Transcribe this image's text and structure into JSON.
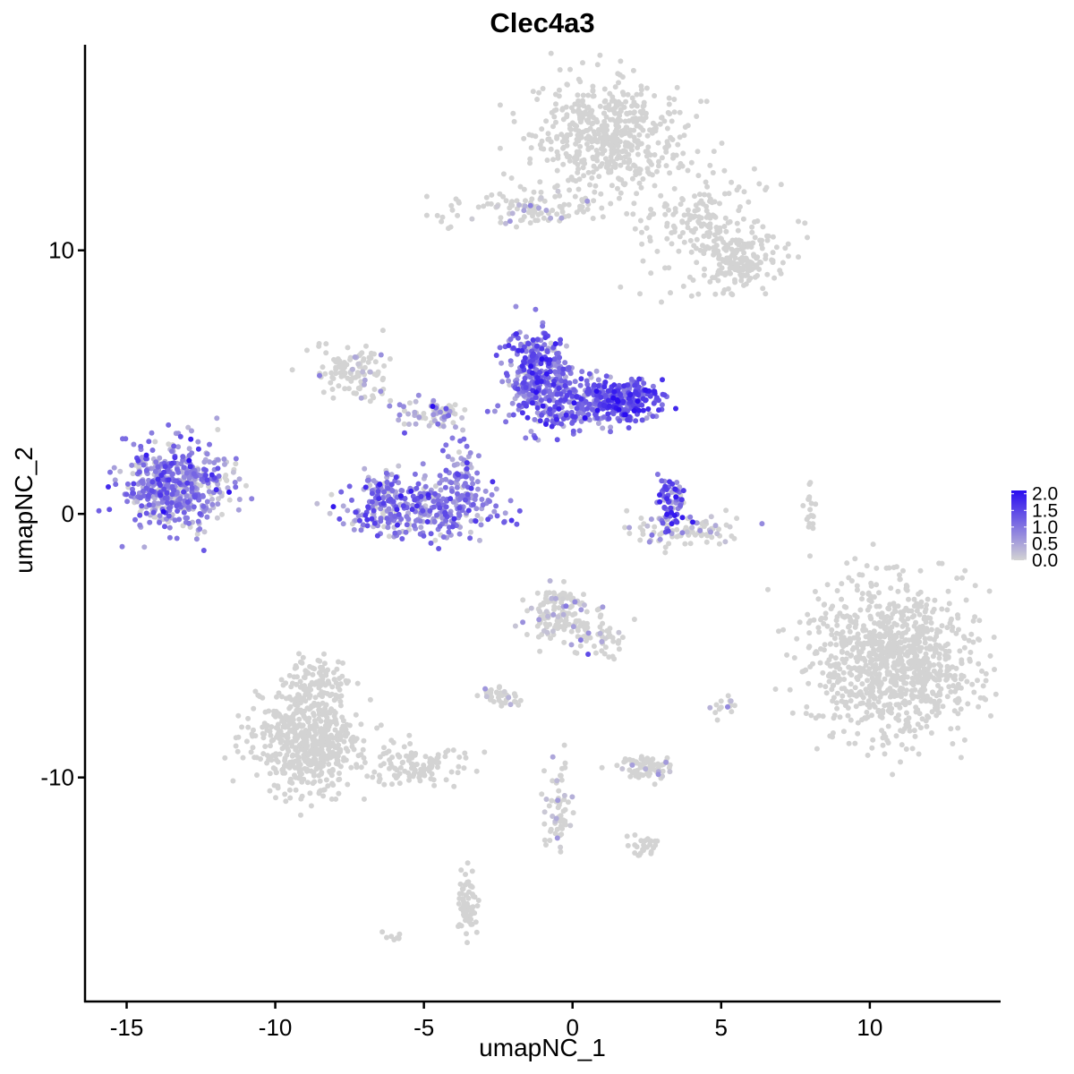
{
  "chart_data": {
    "type": "scatter",
    "title": "Clec4a3",
    "xlabel": "umapNC_1",
    "ylabel": "umapNC_2",
    "xlim": [
      -16.4,
      14.4
    ],
    "ylim": [
      -18.5,
      17.8
    ],
    "x_ticks": [
      -15,
      -10,
      -5,
      0,
      5,
      10
    ],
    "x_tick_labels": [
      "-15",
      "-10",
      "-5",
      "0",
      "5",
      "10"
    ],
    "y_ticks": [
      -10,
      0,
      10
    ],
    "y_tick_labels": [
      "-10",
      "0",
      "10"
    ],
    "grid": false,
    "legend": {
      "position": "right",
      "type": "colorbar",
      "range": [
        0,
        2.1
      ],
      "ticks": [
        0.0,
        0.5,
        1.0,
        1.5,
        2.0
      ],
      "tick_labels": [
        "0.0",
        "0.5",
        "1.0",
        "1.5",
        "2.0"
      ],
      "low_color": "#d3d3d3",
      "high_color": "#2a0df0"
    },
    "colors": {
      "low": "#d3d3d3",
      "high": "#2a0df0"
    },
    "clusters": [
      {
        "id": "top-right-block",
        "cx": 1.2,
        "cy": 14.3,
        "sx": 1.2,
        "sy": 1.0,
        "n": 520,
        "expr": 0.0
      },
      {
        "id": "top-right-arm",
        "cx": 4.6,
        "cy": 10.8,
        "sx": 1.3,
        "sy": 1.2,
        "n": 220,
        "expr": 0.0
      },
      {
        "id": "top-right-tail",
        "cx": 5.8,
        "cy": 9.6,
        "sx": 0.6,
        "sy": 0.5,
        "n": 120,
        "expr": 0.0
      },
      {
        "id": "top-streak",
        "cx": -1.6,
        "cy": 11.6,
        "sx": 1.3,
        "sy": 0.35,
        "n": 110,
        "expr": 0.03
      },
      {
        "id": "left-blob",
        "cx": -13.5,
        "cy": 1.1,
        "sx": 0.85,
        "sy": 0.75,
        "n": 460,
        "expr": 0.8
      },
      {
        "id": "left-blob-tail",
        "cx": -12.0,
        "cy": 1.3,
        "sx": 0.4,
        "sy": 0.9,
        "n": 50,
        "expr": 0.5
      },
      {
        "id": "crescent-bottom",
        "cx": -5.0,
        "cy": 0.2,
        "sx": 1.3,
        "sy": 0.55,
        "n": 340,
        "expr": 0.85
      },
      {
        "id": "crescent-left",
        "cx": -6.3,
        "cy": 0.9,
        "sx": 0.3,
        "sy": 0.5,
        "n": 60,
        "expr": 0.8
      },
      {
        "id": "crescent-right",
        "cx": -3.8,
        "cy": 1.2,
        "sx": 0.3,
        "sy": 0.7,
        "n": 70,
        "expr": 0.8
      },
      {
        "id": "mid-upper-left",
        "cx": -7.4,
        "cy": 5.4,
        "sx": 0.6,
        "sy": 0.5,
        "n": 110,
        "expr": 0.05
      },
      {
        "id": "mid-y-branch",
        "cx": -4.8,
        "cy": 3.8,
        "sx": 0.7,
        "sy": 0.3,
        "n": 70,
        "expr": 0.55
      },
      {
        "id": "mid-hub-left",
        "cx": -1.2,
        "cy": 5.4,
        "sx": 0.55,
        "sy": 0.8,
        "n": 300,
        "expr": 1.0
      },
      {
        "id": "mid-hub-center",
        "cx": 0.0,
        "cy": 4.2,
        "sx": 0.9,
        "sy": 0.55,
        "n": 240,
        "expr": 0.95
      },
      {
        "id": "mid-hub-right",
        "cx": 1.8,
        "cy": 4.3,
        "sx": 0.6,
        "sy": 0.4,
        "n": 220,
        "expr": 1.3
      },
      {
        "id": "small-right-vertical",
        "cx": 3.3,
        "cy": 0.5,
        "sx": 0.25,
        "sy": 0.6,
        "n": 70,
        "expr": 1.2
      },
      {
        "id": "small-right-base",
        "cx": 3.6,
        "cy": -0.6,
        "sx": 0.9,
        "sy": 0.35,
        "n": 100,
        "expr": 0.25
      },
      {
        "id": "right-large-blob",
        "cx": 10.8,
        "cy": -5.6,
        "sx": 1.45,
        "sy": 1.45,
        "n": 980,
        "expr": 0.0
      },
      {
        "id": "bottom-left-blob",
        "cx": -8.9,
        "cy": -8.6,
        "sx": 0.9,
        "sy": 1.0,
        "n": 560,
        "expr": 0.0
      },
      {
        "id": "bottom-left-top",
        "cx": -8.6,
        "cy": -6.3,
        "sx": 0.4,
        "sy": 0.6,
        "n": 90,
        "expr": 0.0
      },
      {
        "id": "bottom-left-tail",
        "cx": -5.2,
        "cy": -9.6,
        "sx": 0.9,
        "sy": 0.35,
        "n": 110,
        "expr": 0.0
      },
      {
        "id": "center-lower-blob",
        "cx": -0.5,
        "cy": -3.8,
        "sx": 0.55,
        "sy": 0.55,
        "n": 140,
        "expr": 0.08
      },
      {
        "id": "center-lower-tail",
        "cx": 0.9,
        "cy": -4.7,
        "sx": 0.5,
        "sy": 0.4,
        "n": 50,
        "expr": 0.02
      },
      {
        "id": "small-mid-cluster",
        "cx": -2.5,
        "cy": -6.9,
        "sx": 0.35,
        "sy": 0.2,
        "n": 40,
        "expr": 0.05
      },
      {
        "id": "small-dot-cluster",
        "cx": 5.1,
        "cy": -7.4,
        "sx": 0.2,
        "sy": 0.2,
        "n": 15,
        "expr": 0.05
      },
      {
        "id": "lower-center-oval",
        "cx": 2.5,
        "cy": -9.6,
        "sx": 0.5,
        "sy": 0.25,
        "n": 70,
        "expr": 0.08
      },
      {
        "id": "lower-streak",
        "cx": -0.5,
        "cy": -11.2,
        "sx": 0.2,
        "sy": 0.8,
        "n": 60,
        "expr": 0.02
      },
      {
        "id": "lower-right-small",
        "cx": 2.4,
        "cy": -12.6,
        "sx": 0.25,
        "sy": 0.2,
        "n": 25,
        "expr": 0.0
      },
      {
        "id": "bottom-vertical",
        "cx": -3.5,
        "cy": -14.8,
        "sx": 0.2,
        "sy": 0.6,
        "n": 60,
        "expr": 0.0
      },
      {
        "id": "right-thin-streak",
        "cx": 8.0,
        "cy": 0.3,
        "sx": 0.1,
        "sy": 0.5,
        "n": 18,
        "expr": 0.0
      },
      {
        "id": "far-bottom-dots",
        "cx": -6.0,
        "cy": -16.0,
        "sx": 0.2,
        "sy": 0.1,
        "n": 8,
        "expr": 0.0
      }
    ]
  }
}
